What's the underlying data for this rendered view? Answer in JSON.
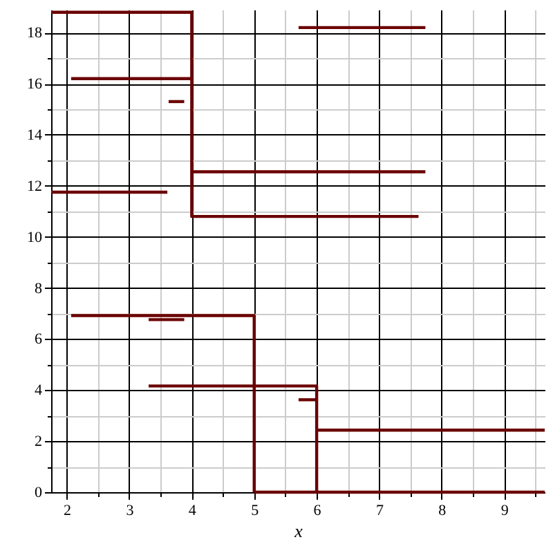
{
  "chart_data": {
    "type": "line",
    "xlabel": "x",
    "xlim": [
      1.75,
      9.65
    ],
    "ylim": [
      0,
      18.9
    ],
    "xticks": [
      2,
      {
        "value": 2.5,
        "label": null
      },
      3,
      {
        "value": 3.5,
        "label": null
      },
      4,
      {
        "value": 4.5,
        "label": null
      },
      5,
      {
        "value": 5.5,
        "label": null
      },
      6,
      {
        "value": 6.5,
        "label": null
      },
      7,
      {
        "value": 7.5,
        "label": null
      },
      8,
      {
        "value": 8.5,
        "label": null
      },
      9,
      {
        "value": 9.5,
        "label": null
      }
    ],
    "yticks": [
      0,
      {
        "value": 1,
        "label": null
      },
      2,
      {
        "value": 3,
        "label": null
      },
      4,
      {
        "value": 5,
        "label": null
      },
      6,
      {
        "value": 7,
        "label": null
      },
      8,
      {
        "value": 9,
        "label": null
      },
      10,
      {
        "value": 11,
        "label": null
      },
      12,
      {
        "value": 13,
        "label": null
      },
      14,
      {
        "value": 15,
        "label": null
      },
      16,
      {
        "value": 17,
        "label": null
      },
      18
    ],
    "grid": true,
    "marker": "none",
    "line_style": "solid",
    "series": [
      {
        "color": "#6b0000",
        "x": [
          1.75,
          4,
          4,
          7.63
        ],
        "values": [
          18.8,
          18.8,
          10.8,
          10.8
        ]
      },
      {
        "color": "#6b0000",
        "x": [
          2.07,
          4
        ],
        "values": [
          16.2,
          16.2
        ]
      },
      {
        "color": "#6b0000",
        "x": [
          3.63,
          3.88
        ],
        "values": [
          15.3,
          15.3
        ]
      },
      {
        "color": "#6b0000",
        "x": [
          5.71,
          7.74
        ],
        "values": [
          18.2,
          18.2
        ]
      },
      {
        "color": "#6b0000",
        "x": [
          4,
          7.74
        ],
        "values": [
          12.55,
          12.55
        ]
      },
      {
        "color": "#6b0000",
        "x": [
          1.75,
          3.61
        ],
        "values": [
          11.75,
          11.75
        ]
      },
      {
        "color": "#6b0000",
        "x": [
          2.07,
          5,
          5
        ],
        "values": [
          6.92,
          6.92,
          0
        ]
      },
      {
        "color": "#6b0000",
        "x": [
          3.31,
          3.88
        ],
        "values": [
          6.76,
          6.76
        ]
      },
      {
        "color": "#6b0000",
        "x": [
          3.31,
          6,
          6
        ],
        "values": [
          4.16,
          4.16,
          0
        ]
      },
      {
        "color": "#6b0000",
        "x": [
          5.71,
          5.98
        ],
        "values": [
          3.62,
          3.62
        ]
      },
      {
        "color": "#6b0000",
        "x": [
          6,
          9.65
        ],
        "values": [
          2.43,
          2.43
        ]
      },
      {
        "color": "#6b0000",
        "x": [
          5,
          9.65
        ],
        "values": [
          0,
          0
        ]
      }
    ]
  }
}
